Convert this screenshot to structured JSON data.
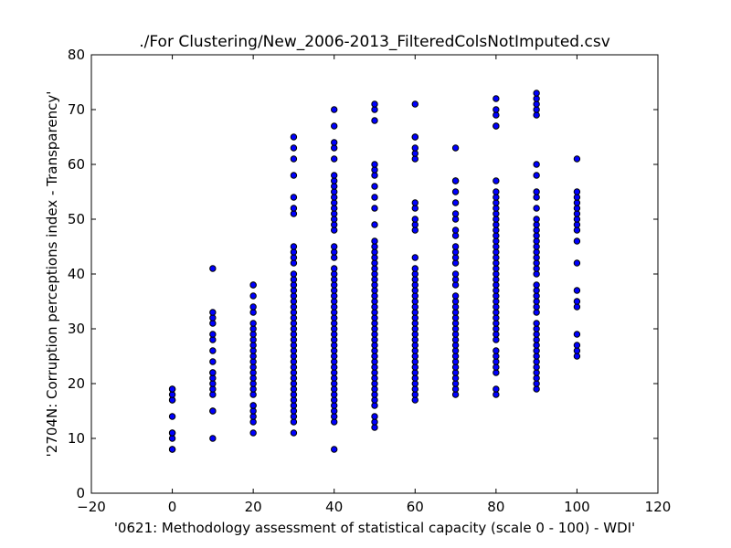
{
  "chart_data": {
    "type": "scatter",
    "title": "./For Clustering/New_2006-2013_FilteredColsNotImputed.csv",
    "xlabel": "'0621: Methodology assessment of statistical capacity  (scale 0 - 100) - WDI'",
    "ylabel": "'2704N: Corruption perceptions index - Transparency'",
    "xlim": [
      -20,
      120
    ],
    "ylim": [
      0,
      80
    ],
    "xticks": [
      -20,
      0,
      20,
      40,
      60,
      80,
      100,
      120
    ],
    "yticks": [
      0,
      10,
      20,
      30,
      40,
      50,
      60,
      70,
      80
    ],
    "grid": false,
    "marker_color": "#0000ff",
    "marker_edge": "#000000",
    "columns": [
      {
        "x": 0,
        "y": [
          8,
          8,
          10,
          11,
          11,
          14,
          17,
          17,
          18,
          19,
          19
        ]
      },
      {
        "x": 10,
        "y": [
          10,
          15,
          15,
          18,
          19,
          20,
          21,
          22,
          22,
          24,
          26,
          28,
          29,
          31,
          32,
          33,
          41
        ]
      },
      {
        "x": 20,
        "y": [
          11,
          13,
          14,
          15,
          16,
          16,
          18,
          19,
          20,
          21,
          22,
          23,
          24,
          25,
          26,
          27,
          28,
          29,
          30,
          31,
          33,
          34,
          36,
          38,
          38
        ]
      },
      {
        "x": 30,
        "y": [
          11,
          13,
          14,
          15,
          16,
          17,
          18,
          19,
          20,
          21,
          22,
          23,
          24,
          25,
          26,
          27,
          28,
          29,
          30,
          31,
          32,
          33,
          34,
          35,
          36,
          37,
          38,
          39,
          40,
          42,
          43,
          44,
          45,
          51,
          52,
          54,
          58,
          61,
          63,
          65
        ]
      },
      {
        "x": 40,
        "y": [
          8,
          13,
          14,
          15,
          16,
          17,
          18,
          19,
          20,
          21,
          22,
          23,
          24,
          25,
          26,
          27,
          28,
          29,
          30,
          31,
          32,
          33,
          34,
          35,
          36,
          37,
          38,
          39,
          40,
          41,
          43,
          44,
          45,
          48,
          49,
          50,
          51,
          52,
          53,
          54,
          55,
          56,
          57,
          58,
          61,
          63,
          64,
          67,
          70
        ]
      },
      {
        "x": 50,
        "y": [
          12,
          13,
          14,
          16,
          17,
          18,
          19,
          20,
          21,
          22,
          23,
          24,
          25,
          26,
          27,
          28,
          29,
          30,
          31,
          32,
          33,
          34,
          35,
          36,
          37,
          38,
          39,
          40,
          41,
          42,
          43,
          44,
          45,
          46,
          49,
          52,
          54,
          56,
          58,
          59,
          60,
          68,
          70,
          71
        ]
      },
      {
        "x": 60,
        "y": [
          17,
          18,
          19,
          20,
          21,
          22,
          23,
          24,
          25,
          26,
          27,
          28,
          29,
          30,
          31,
          32,
          33,
          34,
          35,
          36,
          37,
          38,
          39,
          40,
          41,
          43,
          48,
          49,
          50,
          52,
          53,
          61,
          62,
          63,
          65,
          65,
          71
        ]
      },
      {
        "x": 70,
        "y": [
          18,
          19,
          20,
          21,
          22,
          23,
          24,
          25,
          26,
          27,
          28,
          29,
          30,
          31,
          32,
          33,
          34,
          35,
          36,
          38,
          39,
          40,
          42,
          43,
          44,
          45,
          47,
          48,
          50,
          51,
          53,
          55,
          57,
          57,
          63
        ]
      },
      {
        "x": 80,
        "y": [
          18,
          19,
          22,
          23,
          24,
          25,
          26,
          28,
          29,
          30,
          31,
          32,
          33,
          34,
          35,
          36,
          37,
          38,
          39,
          40,
          41,
          42,
          43,
          44,
          45,
          46,
          47,
          48,
          49,
          50,
          51,
          52,
          53,
          54,
          55,
          57,
          67,
          67,
          69,
          70,
          72
        ]
      },
      {
        "x": 90,
        "y": [
          19,
          20,
          21,
          22,
          23,
          24,
          25,
          26,
          27,
          28,
          29,
          30,
          31,
          33,
          34,
          35,
          36,
          37,
          38,
          40,
          41,
          42,
          43,
          44,
          45,
          46,
          47,
          48,
          49,
          50,
          52,
          54,
          55,
          58,
          60,
          69,
          70,
          71,
          72,
          73
        ]
      },
      {
        "x": 100,
        "y": [
          25,
          26,
          27,
          29,
          34,
          35,
          37,
          42,
          46,
          48,
          49,
          50,
          51,
          52,
          53,
          54,
          55,
          61
        ]
      }
    ]
  }
}
